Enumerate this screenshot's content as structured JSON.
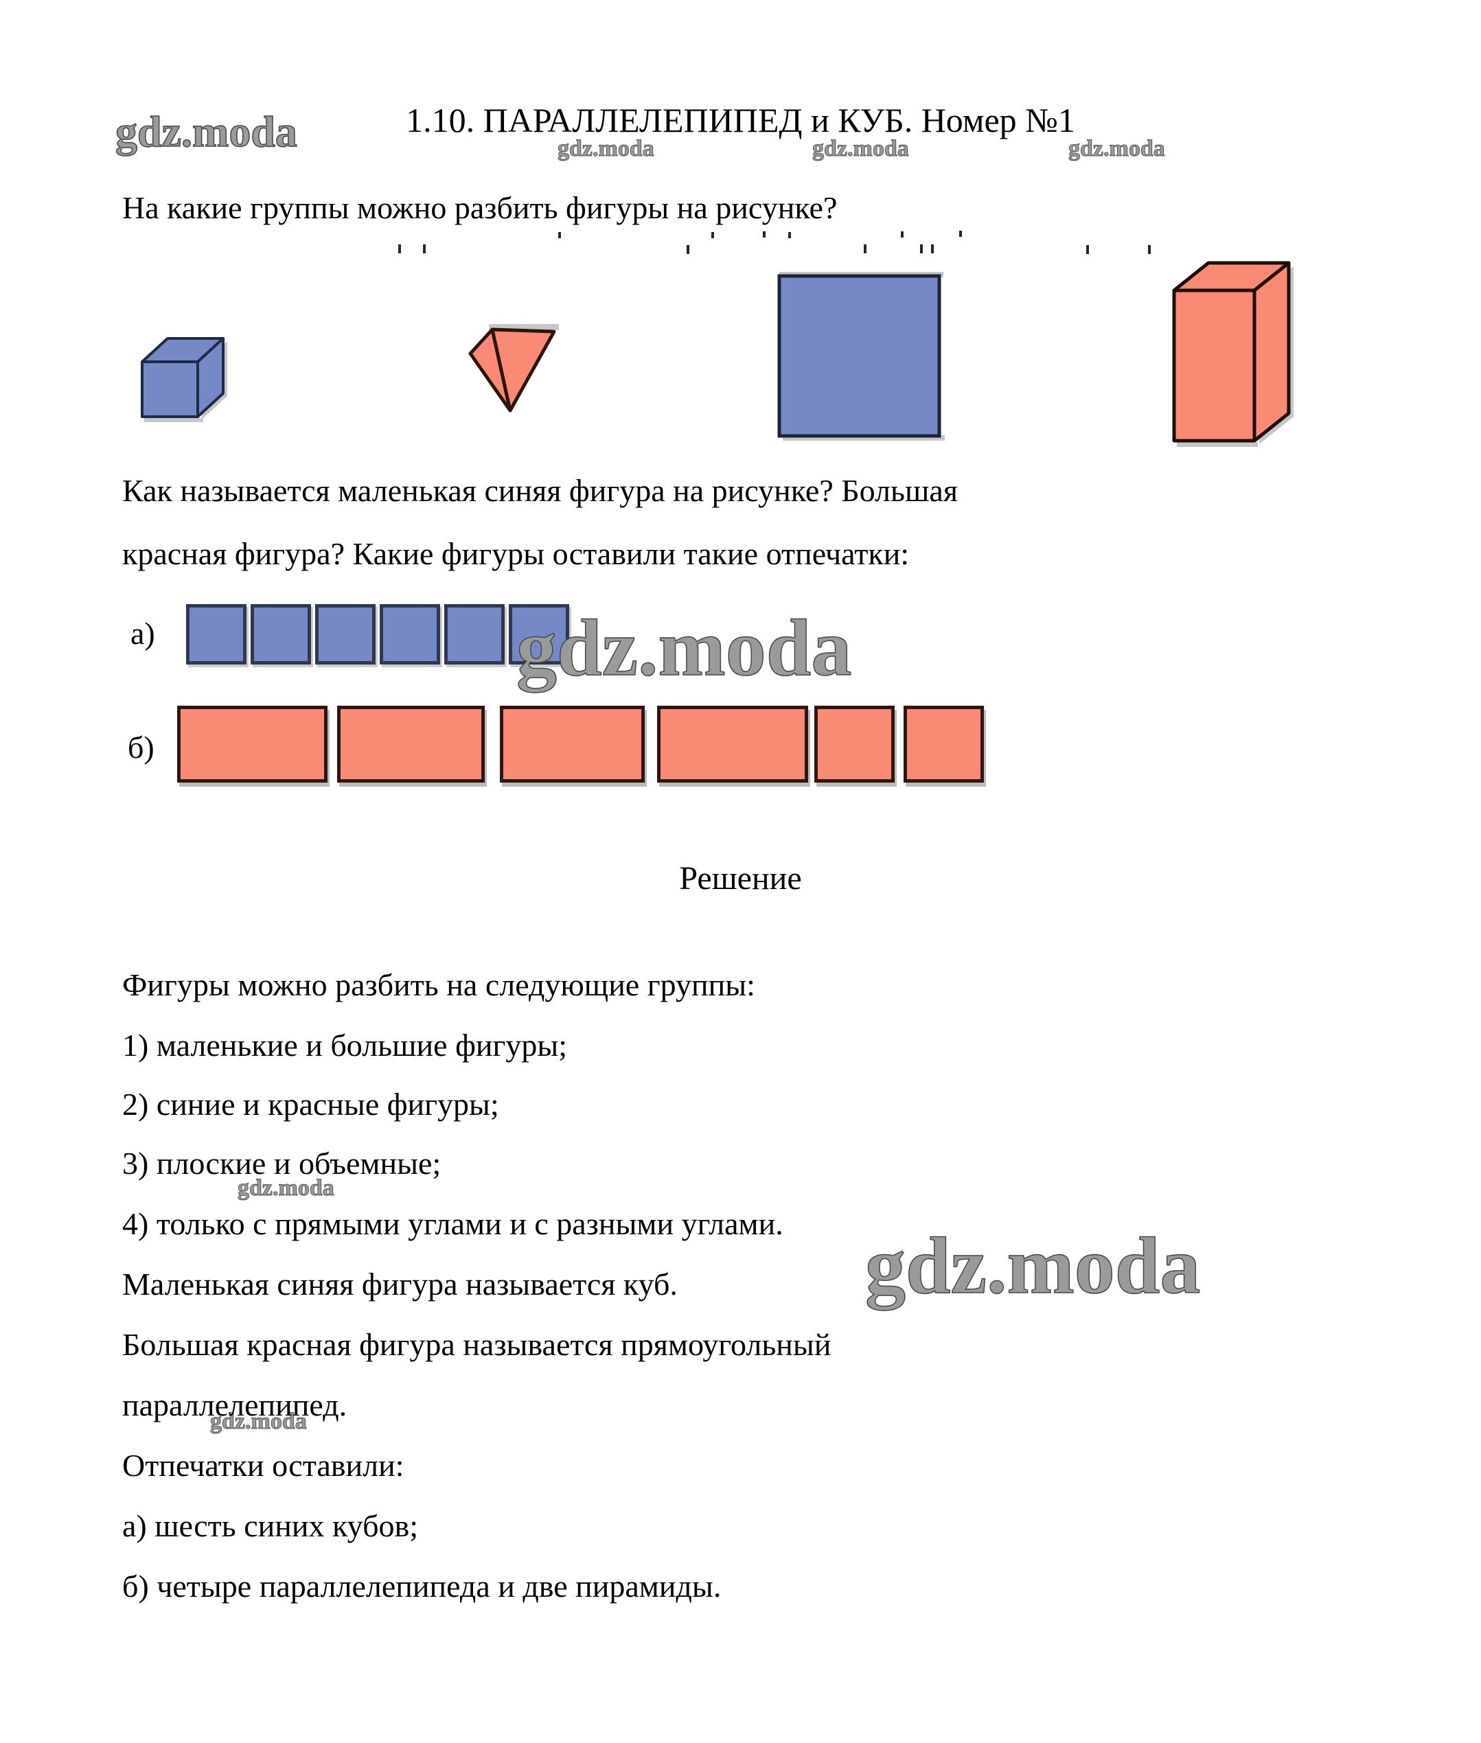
{
  "page": {
    "title": "1.10. ПАРАЛЛЕЛЕПИПЕД и КУБ. Номер №1",
    "question_1": "На какие группы можно разбить фигуры на рисунке?",
    "question_2_line1": "Как называется маленькая синяя фигура на рисунке? Большая",
    "question_2_line2": "красная фигура? Какие фигуры оставили такие отпечатки:",
    "solution_heading": "Решение"
  },
  "watermark": {
    "text": "gdz.moda"
  },
  "figures": {
    "items": [
      {
        "name": "small-blue-cube",
        "type": "cube",
        "color": "blue"
      },
      {
        "name": "red-pyramid",
        "type": "pyramid",
        "color": "red"
      },
      {
        "name": "large-blue-square",
        "type": "square",
        "color": "blue"
      },
      {
        "name": "red-parallelepiped",
        "type": "parallelepiped",
        "color": "red"
      }
    ]
  },
  "stamps": {
    "a": {
      "label": "а)",
      "shape": "square",
      "count": 6
    },
    "b": {
      "label": "б)",
      "shape": "rectangle",
      "count": 6,
      "widths": [
        219,
        215,
        211,
        220,
        117,
        117
      ]
    }
  },
  "solution": {
    "lines": [
      "Фигуры можно разбить на следующие группы:",
      "1) маленькие и большие фигуры;",
      "2) синие и красные фигуры;",
      "3) плоские и объемные;",
      "4) только с прямыми углами и с разными углами.",
      "Маленькая синяя фигура называется куб.",
      "Большая красная фигура называется прямоугольный",
      "параллелепипед.",
      "Отпечатки оставили:",
      "а) шесть синих кубов;",
      "б) четыре параллелепипеда и две пирамиды."
    ]
  },
  "colors": {
    "blue_fill": "#7589c6",
    "blue_stroke": "#2e3850",
    "salmon_fill": "#f98b74",
    "salmon_stroke": "#2a140c",
    "shadow": "#c6c6c6",
    "watermark": "#5a5a5a"
  }
}
